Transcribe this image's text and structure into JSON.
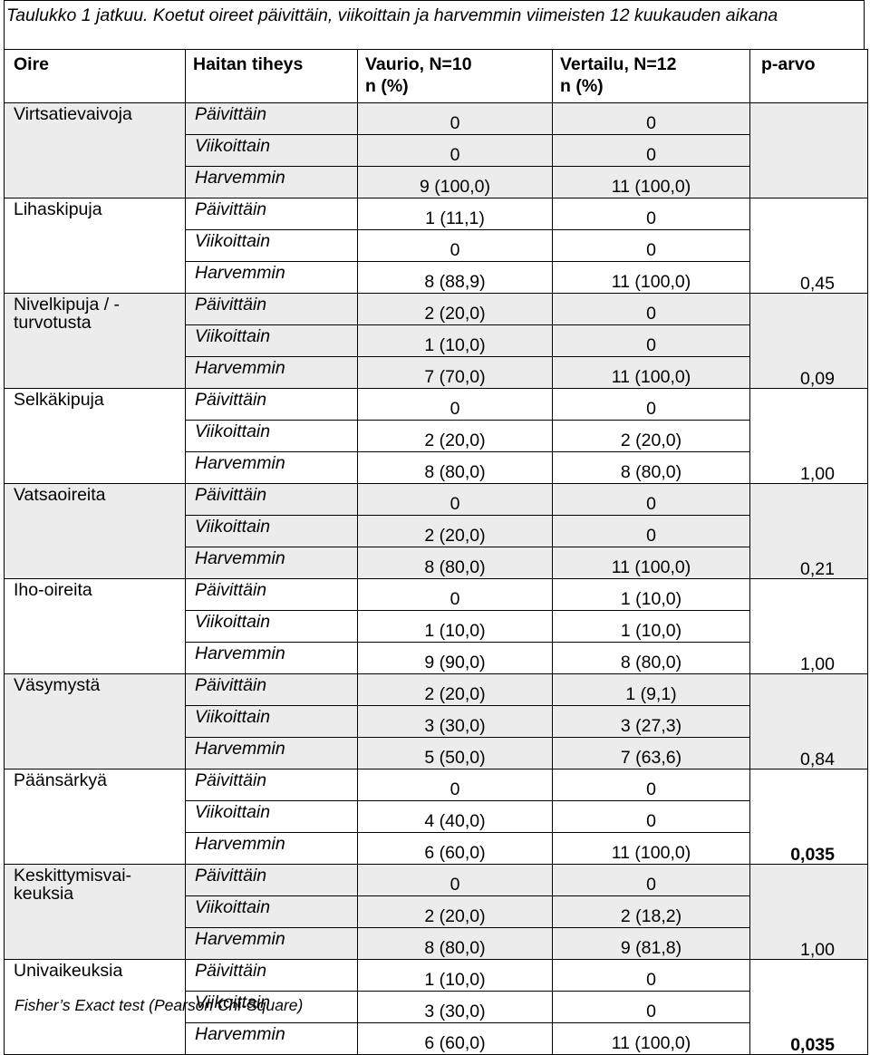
{
  "caption": "Taulukko 1 jatkuu. Koetut oireet päivittäin, viikoittain ja harvemmin viimeisten 12 kuukauden aikana",
  "headers": {
    "oire": "Oire",
    "tiheys": "Haitan tiheys",
    "vaurio_1": "Vaurio, N=10",
    "vaurio_2": "n (%)",
    "vertailu_1": "Vertailu, N=12",
    "vertailu_2": "n (%)",
    "p": "p-arvo"
  },
  "groups": [
    {
      "oire": "Virtsatievaivoja",
      "p": "",
      "p_bold": false,
      "rows": [
        {
          "tiheys": "Päivittäin",
          "vaurio": "0",
          "vertailu": "0"
        },
        {
          "tiheys": "Viikoittain",
          "vaurio": "0",
          "vertailu": "0"
        },
        {
          "tiheys": "Harvemmin",
          "vaurio": "9 (100,0)",
          "vertailu": "11 (100,0)"
        }
      ]
    },
    {
      "oire": "Lihaskipuja",
      "p": "0,45",
      "p_bold": false,
      "rows": [
        {
          "tiheys": "Päivittäin",
          "vaurio": "1 (11,1)",
          "vertailu": "0"
        },
        {
          "tiheys": "Viikoittain",
          "vaurio": "0",
          "vertailu": "0"
        },
        {
          "tiheys": "Harvemmin",
          "vaurio": "8 (88,9)",
          "vertailu": "11 (100,0)"
        }
      ]
    },
    {
      "oire": "Nivelkipuja / -turvotusta",
      "p": "0,09",
      "p_bold": false,
      "rows": [
        {
          "tiheys": "Päivittäin",
          "vaurio": "2 (20,0)",
          "vertailu": "0"
        },
        {
          "tiheys": "Viikoittain",
          "vaurio": "1 (10,0)",
          "vertailu": "0"
        },
        {
          "tiheys": "Harvemmin",
          "vaurio": "7 (70,0)",
          "vertailu": "11 (100,0)"
        }
      ]
    },
    {
      "oire": "Selkäkipuja",
      "p": "1,00",
      "p_bold": false,
      "rows": [
        {
          "tiheys": "Päivittäin",
          "vaurio": "0",
          "vertailu": "0"
        },
        {
          "tiheys": "Viikoittain",
          "vaurio": "2 (20,0)",
          "vertailu": "2 (20,0)"
        },
        {
          "tiheys": "Harvemmin",
          "vaurio": "8 (80,0)",
          "vertailu": "8 (80,0)"
        }
      ]
    },
    {
      "oire": "Vatsaoireita",
      "p": "0,21",
      "p_bold": false,
      "rows": [
        {
          "tiheys": "Päivittäin",
          "vaurio": "0",
          "vertailu": "0"
        },
        {
          "tiheys": "Viikoittain",
          "vaurio": "2 (20,0)",
          "vertailu": "0"
        },
        {
          "tiheys": "Harvemmin",
          "vaurio": "8 (80,0)",
          "vertailu": "11 (100,0)"
        }
      ]
    },
    {
      "oire": "Iho-oireita",
      "p": "1,00",
      "p_bold": false,
      "rows": [
        {
          "tiheys": "Päivittäin",
          "vaurio": "0",
          "vertailu": "1 (10,0)"
        },
        {
          "tiheys": "Viikoittain",
          "vaurio": "1 (10,0)",
          "vertailu": "1 (10,0)"
        },
        {
          "tiheys": "Harvemmin",
          "vaurio": "9 (90,0)",
          "vertailu": "8 (80,0)"
        }
      ]
    },
    {
      "oire": "Väsymystä",
      "p": "0,84",
      "p_bold": false,
      "rows": [
        {
          "tiheys": "Päivittäin",
          "vaurio": "2 (20,0)",
          "vertailu": "1 (9,1)"
        },
        {
          "tiheys": "Viikoittain",
          "vaurio": "3 (30,0)",
          "vertailu": "3 (27,3)"
        },
        {
          "tiheys": "Harvemmin",
          "vaurio": "5 (50,0)",
          "vertailu": "7 (63,6)"
        }
      ]
    },
    {
      "oire": "Päänsärkyä",
      "p": "0,035",
      "p_bold": true,
      "rows": [
        {
          "tiheys": "Päivittäin",
          "vaurio": "0",
          "vertailu": "0"
        },
        {
          "tiheys": "Viikoittain",
          "vaurio": "4 (40,0)",
          "vertailu": "0"
        },
        {
          "tiheys": "Harvemmin",
          "vaurio": "6 (60,0)",
          "vertailu": "11 (100,0)"
        }
      ]
    },
    {
      "oire": "Keskittymisvai-keuksia",
      "p": "1,00",
      "p_bold": false,
      "rows": [
        {
          "tiheys": "Päivittäin",
          "vaurio": "0",
          "vertailu": "0"
        },
        {
          "tiheys": "Viikoittain",
          "vaurio": "2 (20,0)",
          "vertailu": "2 (18,2)"
        },
        {
          "tiheys": "Harvemmin",
          "vaurio": "8 (80,0)",
          "vertailu": "9 (81,8)"
        }
      ]
    },
    {
      "oire": "Univaikeuksia",
      "p": "0,035",
      "p_bold": true,
      "rows": [
        {
          "tiheys": "Päivittäin",
          "vaurio": "1 (10,0)",
          "vertailu": "0"
        },
        {
          "tiheys": "Viikoittain",
          "vaurio": "3 (30,0)",
          "vertailu": "0"
        },
        {
          "tiheys": "Harvemmin",
          "vaurio": "6 (60,0)",
          "vertailu": "11 (100,0)"
        }
      ]
    }
  ],
  "footnote": "Fisher’s Exact test (Pearson Chi-Square)"
}
